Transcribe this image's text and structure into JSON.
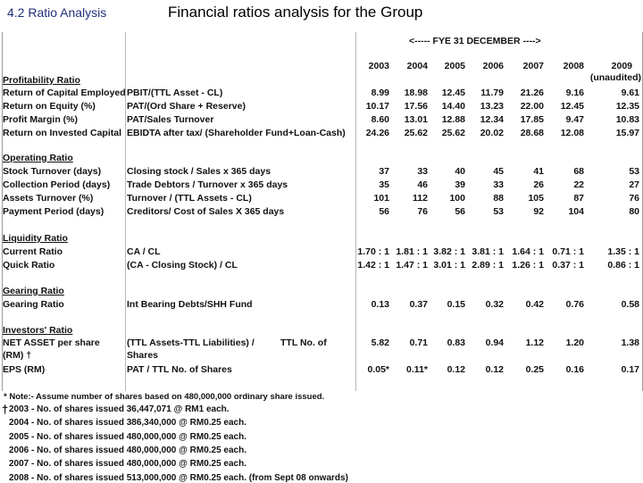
{
  "header": {
    "section": "4.2  Ratio Analysis",
    "title": "Financial ratios analysis for the Group"
  },
  "table": {
    "fye_label": "<-----      FYE 31 DECEMBER      ---->",
    "years": [
      "2003",
      "2004",
      "2005",
      "2006",
      "2007",
      "2008",
      "2009"
    ],
    "unaudited": "(unaudited)",
    "sections": [
      {
        "title": "Profitability Ratio",
        "rows": [
          {
            "label": "Return of Capital Employed",
            "formula": "PBIT/(TTL Asset - CL)",
            "values": [
              "8.99",
              "18.98",
              "12.45",
              "11.79",
              "21.26",
              "9.16",
              "9.61"
            ]
          },
          {
            "label": "Return on Equity (%)",
            "formula": "PAT/(Ord Share + Reserve)",
            "values": [
              "10.17",
              "17.56",
              "14.40",
              "13.23",
              "22.00",
              "12.45",
              "12.35"
            ]
          },
          {
            "label": "Profit Margin (%)",
            "formula": "PAT/Sales Turnover",
            "values": [
              "8.60",
              "13.01",
              "12.88",
              "12.34",
              "17.85",
              "9.47",
              "10.83"
            ]
          },
          {
            "label": "Return on Invested Capital",
            "formula": "EBIDTA after tax/ (Shareholder Fund+Loan-Cash)",
            "values": [
              "24.26",
              "25.62",
              "25.62",
              "20.02",
              "28.68",
              "12.08",
              "15.97"
            ]
          }
        ]
      },
      {
        "title": "Operating Ratio",
        "rows": [
          {
            "label": "Stock Turnover (days)",
            "formula": "Closing stock / Sales x 365 days",
            "values": [
              "37",
              "33",
              "40",
              "45",
              "41",
              "68",
              "53"
            ]
          },
          {
            "label": "Collection Period (days)",
            "formula": "Trade Debtors / Turnover x 365 days",
            "values": [
              "35",
              "46",
              "39",
              "33",
              "26",
              "22",
              "27"
            ]
          },
          {
            "label": "Assets Turnover (%)",
            "formula": "Turnover / (TTL Assets - CL)",
            "values": [
              "101",
              "112",
              "100",
              "88",
              "105",
              "87",
              "76"
            ]
          },
          {
            "label": "Payment Period (days)",
            "formula": "Creditors/ Cost of Sales X 365 days",
            "values": [
              "56",
              "76",
              "56",
              "53",
              "92",
              "104",
              "80"
            ]
          }
        ]
      },
      {
        "title": "Liquidity Ratio",
        "rows": [
          {
            "label": "Current Ratio",
            "formula": "CA / CL",
            "values": [
              "1.70 : 1",
              "1.81 : 1",
              "3.82 : 1",
              "3.81 : 1",
              "1.64 : 1",
              "0.71 : 1",
              "1.35 : 1"
            ]
          },
          {
            "label": "Quick Ratio",
            "formula": "(CA - Closing Stock) / CL",
            "values": [
              "1.42 : 1",
              "1.47 : 1",
              "3.01 : 1",
              "2.89 : 1",
              "1.26 : 1",
              "0.37 : 1",
              "0.86 : 1"
            ]
          }
        ]
      },
      {
        "title": "Gearing Ratio",
        "rows": [
          {
            "label": "Gearing Ratio",
            "formula": "Int Bearing Debts/SHH Fund",
            "values": [
              "0.13",
              "0.37",
              "0.15",
              "0.32",
              "0.42",
              "0.76",
              "0.58"
            ]
          }
        ]
      },
      {
        "title": "Investors' Ratio",
        "rows": [
          {
            "label": "NET ASSET per share",
            "label2": "(RM)  †",
            "formula": "(TTL Assets-TTL Liabilities) /",
            "formula_extra": "TTL No. of",
            "formula2": "Shares",
            "values": [
              "5.82",
              "0.71",
              "0.83",
              "0.94",
              "1.12",
              "1.20",
              "1.38"
            ]
          },
          {
            "label": "EPS (RM)",
            "formula": "PAT / TTL No. of Shares",
            "values": [
              "0.05*",
              "0.11*",
              "0.12",
              "0.12",
              "0.25",
              "0.16",
              "0.17"
            ]
          }
        ]
      }
    ]
  },
  "notes": {
    "asterisk_note": "* Note:- Assume number of shares based on 480,000,000 ordinary share issued.",
    "dagger": "†",
    "lines": [
      "2003  - No. of shares issued 36,447,071 @ RM1 each.",
      "2004  - No. of shares issued 386,340,000 @ RM0.25 each.",
      "2005  - No. of shares issued 480,000,000 @ RM0.25 each.",
      "2006  - No. of shares issued 480,000,000 @ RM0.25 each.",
      "2007  - No. of shares issued 480,000,000 @ RM0.25 each.",
      "2008  - No. of shares issued 513,000,000 @ RM0.25 each.  (from Sept 08 onwards)"
    ]
  }
}
